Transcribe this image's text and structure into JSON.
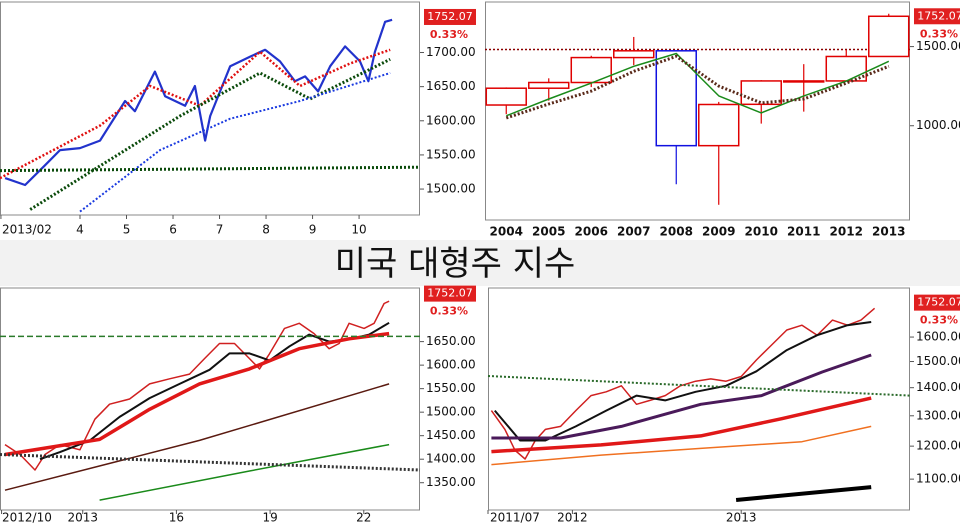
{
  "header": {
    "title": "미국 대형주 지수"
  },
  "chart_data": [
    {
      "type": "line",
      "xlim": [
        2.28,
        11.31
      ],
      "ylim": [
        1462,
        1774
      ],
      "log": false,
      "xticks": [
        {
          "value": 2.3,
          "label": "2013/02"
        },
        4,
        5,
        6,
        7,
        8,
        9,
        10
      ],
      "yticks": [
        {
          "value": 1500,
          "label": "1500.00"
        },
        {
          "value": 1550,
          "label": "1550.00"
        },
        {
          "value": 1600,
          "label": "1600.00"
        },
        {
          "value": 1650,
          "label": "1650.00"
        },
        {
          "value": 1700,
          "label": "1700.00"
        }
      ],
      "last_value": 1752.07,
      "change": "0.33%",
      "series": [
        {
          "color": "#2233cc",
          "style": "solid",
          "width": 2.2,
          "x": [
            2.39,
            2.82,
            3.25,
            3.57,
            4.0,
            4.43,
            4.97,
            5.18,
            5.61,
            5.83,
            6.26,
            6.47,
            6.69,
            6.8,
            7.23,
            7.66,
            7.98,
            8.3,
            8.62,
            8.84,
            9.12,
            9.38,
            9.7,
            10.02,
            10.2,
            10.34,
            10.56,
            10.71
          ],
          "values": [
            1516,
            1506,
            1535,
            1557,
            1560,
            1571,
            1629,
            1614,
            1672,
            1636,
            1622,
            1651,
            1571,
            1607,
            1680,
            1694,
            1704,
            1687,
            1658,
            1665,
            1643,
            1680,
            1709,
            1687,
            1658,
            1701,
            1745,
            1748
          ]
        },
        {
          "color": "#e01010",
          "style": "dotted",
          "width": 2.5,
          "x": [
            2.28,
            4.43,
            5.51,
            6.58,
            7.87,
            8.73,
            9.81,
            10.67
          ],
          "values": [
            1516,
            1593,
            1651,
            1622,
            1701,
            1651,
            1684,
            1704
          ]
        },
        {
          "color": "#0a4a0a",
          "style": "dotted",
          "width": 3,
          "x": [
            2.93,
            6.15,
            7.87,
            8.95,
            10.67
          ],
          "values": [
            1470,
            1607,
            1670,
            1632,
            1690
          ]
        },
        {
          "color": "#1a3ae0",
          "style": "dotted",
          "width": 2,
          "x": [
            4.0,
            5.72,
            7.23,
            8.73,
            10.67
          ],
          "values": [
            1467,
            1557,
            1603,
            1629,
            1670
          ]
        },
        {
          "color": "#0a4a0a",
          "style": "dotted",
          "width": 3,
          "x": [
            2.28,
            11.31
          ],
          "values": [
            1527,
            1532
          ]
        }
      ]
    },
    {
      "type": "candlestick",
      "ylim": [
        617,
        1885
      ],
      "log": true,
      "categories": [
        "2004",
        "2005",
        "2006",
        "2007",
        "2008",
        "2009",
        "2010",
        "2011",
        "2012",
        "2013"
      ],
      "yticks": [
        {
          "value": 1000,
          "label": "1000.00"
        },
        {
          "value": 1500,
          "label": "1500.00"
        }
      ],
      "up_color": "#e00000",
      "down_color": "#1010e0",
      "open": [
        1112,
        1212,
        1248,
        1418,
        1468,
        903,
        1116,
        1258,
        1258,
        1426
      ],
      "high": [
        1217,
        1275,
        1431,
        1576,
        1471,
        1130,
        1263,
        1371,
        1475,
        1775
      ],
      "low": [
        1061,
        1137,
        1219,
        1364,
        741,
        667,
        1011,
        1075,
        1258,
        1426
      ],
      "close": [
        1212,
        1248,
        1418,
        1468,
        903,
        1115,
        1258,
        1258,
        1426,
        1752.07
      ],
      "ref_line": 1478,
      "ref_color": "#8b0000",
      "last_value": 1752.07,
      "change": "0.33%",
      "series": [
        {
          "color": "#1a8a1a",
          "style": "solid",
          "width": 1.5,
          "values": [
            1052,
            1147,
            1244,
            1356,
            1448,
            1165,
            1068,
            1165,
            1257,
            1391
          ]
        },
        {
          "color": "#5a2a1a",
          "style": "dotted",
          "width": 3,
          "values": [
            1041,
            1118,
            1194,
            1322,
            1427,
            1225,
            1124,
            1147,
            1244,
            1356
          ]
        }
      ]
    },
    {
      "type": "line",
      "xlim": [
        10.35,
        23.8
      ],
      "ylim": [
        1292,
        1764
      ],
      "log": false,
      "xticks": [
        {
          "value": 10.4,
          "label": "2012/10"
        },
        {
          "value": 13,
          "label": "2013"
        },
        16,
        19,
        22
      ],
      "yticks": [
        {
          "value": 1350,
          "label": "1350.00"
        },
        {
          "value": 1400,
          "label": "1400.00"
        },
        {
          "value": 1450,
          "label": "1450.00"
        },
        {
          "value": 1500,
          "label": "1500.00"
        },
        {
          "value": 1550,
          "label": "1550.00"
        },
        {
          "value": 1600,
          "label": "1600.00"
        },
        {
          "value": 1650,
          "label": "1650.00"
        }
      ],
      "last_value": 1752.07,
      "change": "0.33%",
      "series": [
        {
          "color": "#d02020",
          "style": "solid",
          "width": 1.5,
          "x": [
            10.51,
            10.99,
            11.47,
            11.79,
            12.27,
            12.91,
            13.39,
            13.86,
            14.5,
            15.14,
            15.78,
            16.42,
            16.9,
            17.38,
            17.86,
            18.34,
            18.66,
            18.98,
            19.46,
            19.93,
            20.41,
            20.89,
            21.21,
            21.53,
            22.01,
            22.33,
            22.65,
            22.81
          ],
          "values": [
            1431,
            1410,
            1377,
            1410,
            1431,
            1420,
            1485,
            1517,
            1528,
            1560,
            1571,
            1581,
            1614,
            1646,
            1646,
            1614,
            1592,
            1624,
            1678,
            1689,
            1667,
            1635,
            1646,
            1689,
            1678,
            1689,
            1731,
            1736
          ]
        },
        {
          "color": "#111111",
          "style": "solid",
          "width": 2,
          "x": [
            11.63,
            12.27,
            13.23,
            14.18,
            15.14,
            16.1,
            17.06,
            17.7,
            18.34,
            18.98,
            19.62,
            20.25,
            20.89,
            21.53,
            22.17,
            22.81
          ],
          "values": [
            1400,
            1415,
            1440,
            1490,
            1530,
            1560,
            1590,
            1625,
            1625,
            1610,
            1640,
            1665,
            1650,
            1655,
            1665,
            1690
          ]
        },
        {
          "color": "#e01818",
          "style": "solid",
          "width": 3.5,
          "x": [
            10.51,
            13.54,
            15.14,
            16.74,
            18.34,
            19.93,
            21.53,
            22.81
          ],
          "values": [
            1410,
            1442,
            1506,
            1560,
            1592,
            1635,
            1656,
            1667
          ]
        },
        {
          "color": "#5a1a10",
          "style": "solid",
          "width": 1.5,
          "x": [
            10.51,
            16.74,
            22.81
          ],
          "values": [
            1334,
            1440,
            1560
          ]
        },
        {
          "color": "#1a8a1a",
          "style": "solid",
          "width": 1.5,
          "x": [
            13.54,
            18.34,
            22.81
          ],
          "values": [
            1313,
            1375,
            1431
          ]
        },
        {
          "color": "#2a7a2a",
          "style": "dashed",
          "width": 1.5,
          "x": [
            10.35,
            23.8
          ],
          "values": [
            1661,
            1661
          ]
        },
        {
          "color": "#333333",
          "style": "dotted",
          "width": 3,
          "x": [
            10.35,
            23.8
          ],
          "values": [
            1410,
            1377
          ]
        }
      ]
    },
    {
      "type": "line",
      "xlim": [
        2011.5,
        2014.0
      ],
      "ylim": [
        1014,
        1821
      ],
      "log": true,
      "xticks": [
        {
          "value": 2011.5,
          "label": "2011/07"
        },
        2012,
        2013
      ],
      "yticks": [
        {
          "value": 1100,
          "label": "1100.00"
        },
        {
          "value": 1200,
          "label": "1200.00"
        },
        {
          "value": 1300,
          "label": "1300.00"
        },
        {
          "value": 1400,
          "label": "1400.00"
        },
        {
          "value": 1500,
          "label": "1500.00"
        },
        {
          "value": 1600,
          "label": "1600.00"
        }
      ],
      "last_value": 1752.07,
      "change": "0.33%",
      "series": [
        {
          "color": "#d02020",
          "style": "solid",
          "width": 1.5,
          "x": [
            2011.52,
            2011.6,
            2011.66,
            2011.72,
            2011.78,
            2011.84,
            2011.93,
            2012.02,
            2012.11,
            2012.2,
            2012.29,
            2012.38,
            2012.46,
            2012.55,
            2012.64,
            2012.73,
            2012.82,
            2012.91,
            2013.0,
            2013.09,
            2013.18,
            2013.27,
            2013.36,
            2013.45,
            2013.54,
            2013.63,
            2013.71,
            2013.79
          ],
          "values": [
            1318,
            1254,
            1187,
            1160,
            1218,
            1254,
            1264,
            1318,
            1371,
            1385,
            1407,
            1340,
            1354,
            1371,
            1407,
            1424,
            1433,
            1424,
            1442,
            1506,
            1567,
            1630,
            1651,
            1608,
            1673,
            1651,
            1673,
            1726
          ]
        },
        {
          "color": "#111111",
          "style": "solid",
          "width": 2,
          "x": [
            2011.54,
            2011.69,
            2011.84,
            2012.02,
            2012.2,
            2012.38,
            2012.55,
            2012.73,
            2012.91,
            2013.09,
            2013.27,
            2013.45,
            2013.63,
            2013.77
          ],
          "values": [
            1318,
            1218,
            1218,
            1264,
            1318,
            1371,
            1354,
            1385,
            1407,
            1462,
            1546,
            1608,
            1651,
            1665
          ]
        },
        {
          "color": "#4a1a5a",
          "style": "solid",
          "width": 3,
          "x": [
            2011.52,
            2011.93,
            2012.29,
            2012.76,
            2013.12,
            2013.48,
            2013.77
          ],
          "values": [
            1226,
            1226,
            1264,
            1340,
            1371,
            1459,
            1526
          ]
        },
        {
          "color": "#e01818",
          "style": "solid",
          "width": 3.5,
          "x": [
            2011.52,
            2012.17,
            2012.76,
            2013.24,
            2013.77
          ],
          "values": [
            1183,
            1204,
            1233,
            1290,
            1362
          ]
        },
        {
          "color": "#f07020",
          "style": "solid",
          "width": 1.5,
          "x": [
            2011.52,
            2012.17,
            2012.76,
            2013.36,
            2013.77
          ],
          "values": [
            1143,
            1172,
            1193,
            1214,
            1264
          ]
        },
        {
          "color": "#2a6a2a",
          "style": "dotted",
          "width": 2,
          "x": [
            2011.5,
            2014.0
          ],
          "values": [
            1444,
            1371
          ]
        },
        {
          "color": "#000000",
          "style": "solid",
          "width": 4,
          "x": [
            2012.97,
            2013.77
          ],
          "values": [
            1041,
            1077
          ]
        }
      ]
    }
  ]
}
